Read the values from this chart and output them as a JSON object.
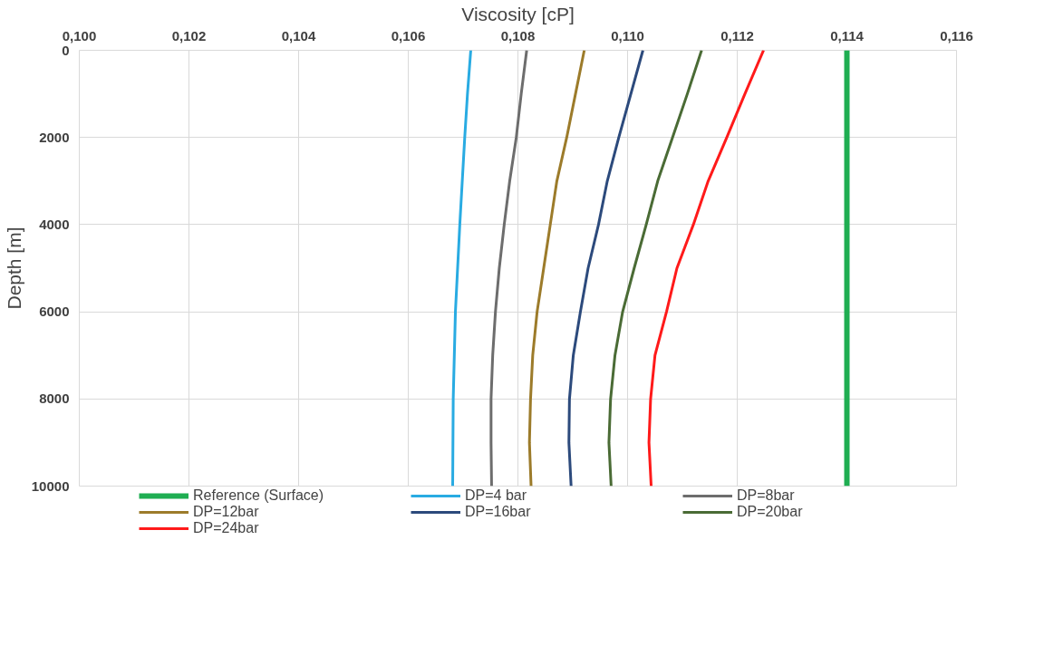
{
  "chart_data": {
    "type": "line",
    "xlabel": "Viscosity [cP]",
    "ylabel": "Depth [m]",
    "xlim": [
      0.1,
      0.116
    ],
    "xticks": [
      {
        "value": 0.1,
        "label": "0,100"
      },
      {
        "value": 0.102,
        "label": "0,102"
      },
      {
        "value": 0.104,
        "label": "0,104"
      },
      {
        "value": 0.106,
        "label": "0,106"
      },
      {
        "value": 0.108,
        "label": "0,108"
      },
      {
        "value": 0.11,
        "label": "0,110"
      },
      {
        "value": 0.112,
        "label": "0,112"
      },
      {
        "value": 0.114,
        "label": "0,114"
      },
      {
        "value": 0.116,
        "label": "0,116"
      }
    ],
    "ylim": [
      10000,
      0
    ],
    "yticks": [
      0,
      2000,
      4000,
      6000,
      8000,
      10000
    ],
    "grid": true,
    "legend": "bottom",
    "series": [
      {
        "name": "Reference (Surface)",
        "color": "#1fae52",
        "x": [
          0.114,
          0.114
        ],
        "values": [
          0,
          10000
        ]
      },
      {
        "name": "DP=4 bar",
        "color": "#29abe2",
        "x": [
          0.10714,
          0.10708,
          0.10703,
          0.10694,
          0.10686,
          0.10682,
          0.10681
        ],
        "values": [
          0,
          1000,
          2000,
          4000,
          6000,
          8000,
          10000
        ]
      },
      {
        "name": "DP=8bar",
        "color": "#6d6d6d",
        "x": [
          0.10816,
          0.10806,
          0.10797,
          0.10785,
          0.10775,
          0.10766,
          0.10759,
          0.10754,
          0.10751,
          0.10751,
          0.10752
        ],
        "values": [
          0,
          1000,
          2000,
          3000,
          4000,
          5000,
          6000,
          7000,
          8000,
          9000,
          10000
        ]
      },
      {
        "name": "DP=12bar",
        "color": "#9c7b2a",
        "x": [
          0.10921,
          0.10905,
          0.10889,
          0.10871,
          0.10859,
          0.10847,
          0.10835,
          0.10827,
          0.10823,
          0.10821,
          0.10824
        ],
        "values": [
          0,
          1000,
          2000,
          3000,
          4000,
          5000,
          6000,
          7000,
          8000,
          9000,
          10000
        ]
      },
      {
        "name": "DP=16bar",
        "color": "#2c4a7c",
        "x": [
          0.11028,
          0.11006,
          0.10984,
          0.10963,
          0.10947,
          0.10928,
          0.10914,
          0.10901,
          0.10894,
          0.10893,
          0.10897
        ],
        "values": [
          0,
          1000,
          2000,
          3000,
          4000,
          5000,
          6000,
          7000,
          8000,
          9000,
          10000
        ]
      },
      {
        "name": "DP=20bar",
        "color": "#4a6b35",
        "x": [
          0.11135,
          0.11109,
          0.11082,
          0.11055,
          0.11034,
          0.11012,
          0.10991,
          0.10977,
          0.10969,
          0.10966,
          0.1097
        ],
        "values": [
          0,
          1000,
          2000,
          3000,
          4000,
          5000,
          6000,
          7000,
          8000,
          9000,
          10000
        ]
      },
      {
        "name": "DP=24bar",
        "color": "#ff1a1a",
        "x": [
          0.11248,
          0.11214,
          0.11181,
          0.11147,
          0.1112,
          0.1109,
          0.11071,
          0.1105,
          0.11042,
          0.11039,
          0.11043
        ],
        "values": [
          0,
          1000,
          2000,
          3000,
          4000,
          5000,
          6000,
          7000,
          8000,
          9000,
          10000
        ]
      }
    ]
  }
}
